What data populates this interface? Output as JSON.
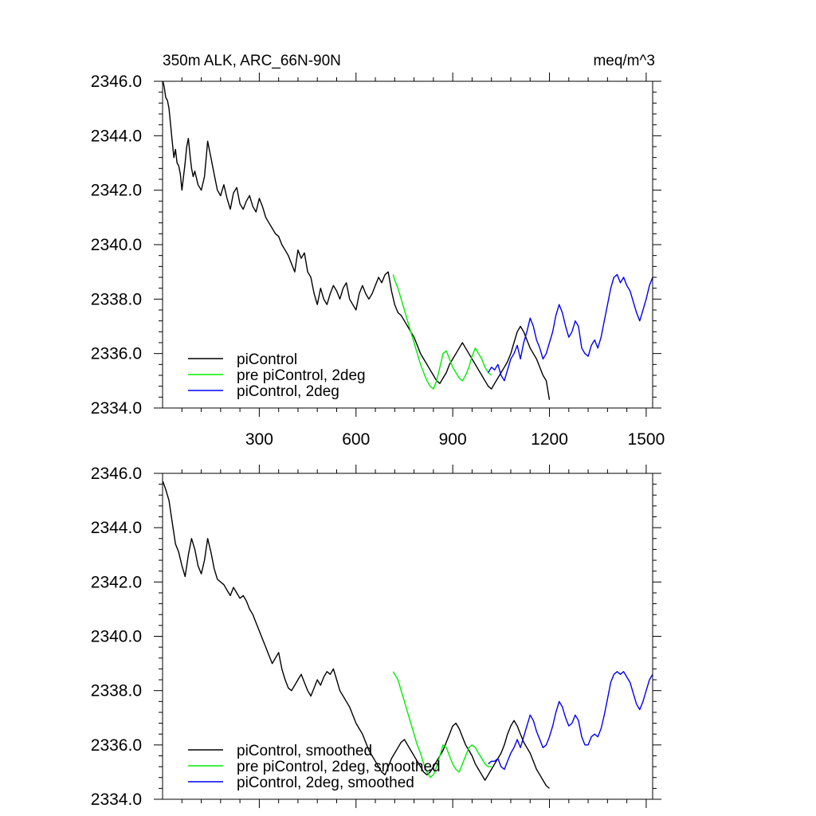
{
  "chart_data": [
    {
      "type": "line",
      "title_left": "350m ALK, ARC_66N-90N",
      "title_right": "meq/m^3",
      "xlim": [
        0,
        1520
      ],
      "ylim": [
        2334.0,
        2346.0
      ],
      "x_ticks": [
        300,
        600,
        900,
        1200,
        1500
      ],
      "x_tick_labels": [
        "300",
        "600",
        "900",
        "1200",
        "1500"
      ],
      "y_ticks": [
        2334.0,
        2336.0,
        2338.0,
        2340.0,
        2342.0,
        2344.0,
        2346.0
      ],
      "y_tick_labels": [
        "2334.0",
        "2336.0",
        "2338.0",
        "2340.0",
        "2342.0",
        "2344.0",
        "2346.0"
      ],
      "legend_position": "bottom-left",
      "series": [
        {
          "name": "piControl",
          "color": "#000000",
          "x": [
            1,
            5,
            10,
            15,
            20,
            25,
            30,
            35,
            40,
            45,
            50,
            55,
            60,
            65,
            70,
            75,
            80,
            85,
            90,
            95,
            100,
            110,
            120,
            130,
            140,
            150,
            160,
            170,
            180,
            190,
            200,
            210,
            220,
            230,
            240,
            250,
            260,
            270,
            280,
            290,
            300,
            310,
            320,
            330,
            340,
            350,
            360,
            370,
            380,
            390,
            400,
            410,
            420,
            430,
            440,
            450,
            460,
            470,
            480,
            490,
            500,
            510,
            520,
            530,
            540,
            550,
            560,
            570,
            580,
            590,
            600,
            610,
            620,
            630,
            640,
            650,
            660,
            670,
            680,
            690,
            700,
            710,
            720,
            730,
            740,
            750,
            760,
            770,
            780,
            790,
            800,
            810,
            820,
            830,
            840,
            850,
            860,
            870,
            880,
            890,
            900,
            910,
            920,
            930,
            940,
            950,
            960,
            970,
            980,
            990,
            1000,
            1010,
            1020,
            1030,
            1040,
            1050,
            1060,
            1070,
            1080,
            1090,
            1100,
            1110,
            1120,
            1130,
            1140,
            1150,
            1160,
            1170,
            1180,
            1190,
            1200
          ],
          "y": [
            2346.0,
            2345.8,
            2345.4,
            2345.3,
            2345.0,
            2344.4,
            2343.8,
            2343.2,
            2343.5,
            2343.0,
            2342.9,
            2342.6,
            2342.0,
            2342.5,
            2343.0,
            2343.6,
            2343.9,
            2343.3,
            2342.8,
            2342.5,
            2342.7,
            2342.2,
            2342.0,
            2342.5,
            2343.8,
            2343.2,
            2342.6,
            2342.0,
            2341.8,
            2342.2,
            2341.7,
            2341.3,
            2341.9,
            2342.1,
            2341.5,
            2341.3,
            2341.6,
            2341.8,
            2341.4,
            2341.2,
            2341.7,
            2341.4,
            2341.0,
            2340.8,
            2340.6,
            2340.4,
            2340.3,
            2340.0,
            2339.8,
            2339.6,
            2339.3,
            2339.0,
            2339.8,
            2339.5,
            2339.7,
            2339.0,
            2338.8,
            2338.2,
            2337.8,
            2338.4,
            2338.0,
            2337.8,
            2338.2,
            2338.5,
            2338.3,
            2338.0,
            2338.4,
            2338.6,
            2338.0,
            2337.8,
            2337.6,
            2338.2,
            2338.5,
            2338.2,
            2338.0,
            2338.2,
            2338.5,
            2338.8,
            2338.6,
            2338.9,
            2339.0,
            2338.3,
            2337.8,
            2337.5,
            2337.4,
            2337.2,
            2337.0,
            2336.8,
            2336.6,
            2336.3,
            2336.0,
            2335.8,
            2335.6,
            2335.4,
            2335.2,
            2335.0,
            2334.9,
            2335.1,
            2335.3,
            2335.6,
            2335.8,
            2336.0,
            2336.2,
            2336.4,
            2336.2,
            2336.0,
            2335.8,
            2335.6,
            2335.4,
            2335.2,
            2335.0,
            2334.8,
            2334.7,
            2334.9,
            2335.1,
            2335.3,
            2335.5,
            2335.7,
            2336.0,
            2336.4,
            2336.8,
            2337.0,
            2336.8,
            2336.5,
            2336.2,
            2336.0,
            2335.8,
            2335.5,
            2335.2,
            2335.0,
            2334.3
          ]
        },
        {
          "name": "pre piControl, 2deg",
          "color": "#00ee00",
          "x": [
            715,
            720,
            730,
            740,
            750,
            760,
            770,
            780,
            790,
            800,
            810,
            820,
            830,
            840,
            850,
            860,
            870,
            880,
            890,
            900,
            910,
            920,
            930,
            940,
            950,
            960,
            970,
            980,
            990,
            1000,
            1010,
            1020
          ],
          "y": [
            2338.9,
            2338.7,
            2338.4,
            2338.0,
            2337.6,
            2337.2,
            2336.8,
            2336.4,
            2336.0,
            2335.6,
            2335.3,
            2335.0,
            2334.8,
            2334.7,
            2335.0,
            2335.5,
            2336.0,
            2336.1,
            2335.8,
            2335.5,
            2335.3,
            2335.1,
            2335.0,
            2335.2,
            2335.5,
            2335.9,
            2336.2,
            2336.0,
            2335.8,
            2335.5,
            2335.3,
            2335.2
          ]
        },
        {
          "name": "piControl, 2deg",
          "color": "#0000ee",
          "x": [
            1010,
            1020,
            1030,
            1040,
            1050,
            1060,
            1070,
            1080,
            1090,
            1100,
            1110,
            1120,
            1130,
            1140,
            1150,
            1160,
            1170,
            1180,
            1190,
            1200,
            1210,
            1220,
            1230,
            1240,
            1250,
            1260,
            1270,
            1280,
            1290,
            1300,
            1310,
            1320,
            1330,
            1340,
            1350,
            1360,
            1370,
            1380,
            1390,
            1400,
            1410,
            1420,
            1430,
            1440,
            1450,
            1460,
            1470,
            1480,
            1490,
            1500,
            1510,
            1520
          ],
          "y": [
            2335.3,
            2335.5,
            2335.4,
            2335.6,
            2335.2,
            2335.0,
            2335.4,
            2335.8,
            2336.0,
            2336.3,
            2335.8,
            2336.4,
            2336.8,
            2337.3,
            2337.0,
            2336.5,
            2336.2,
            2335.8,
            2336.0,
            2336.4,
            2336.8,
            2337.4,
            2337.8,
            2337.5,
            2337.0,
            2336.6,
            2336.8,
            2337.2,
            2337.0,
            2336.2,
            2336.0,
            2335.9,
            2336.3,
            2336.5,
            2336.2,
            2336.6,
            2337.2,
            2337.8,
            2338.4,
            2338.8,
            2338.9,
            2338.6,
            2338.8,
            2338.5,
            2338.3,
            2337.9,
            2337.5,
            2337.2,
            2337.6,
            2338.0,
            2338.5,
            2338.8
          ]
        }
      ]
    },
    {
      "type": "line",
      "xlim": [
        0,
        1520
      ],
      "ylim": [
        2334.0,
        2346.0
      ],
      "x_ticks": [
        300,
        600,
        900,
        1200,
        1500
      ],
      "y_ticks": [
        2334.0,
        2336.0,
        2338.0,
        2340.0,
        2342.0,
        2344.0,
        2346.0
      ],
      "y_tick_labels": [
        "2334.0",
        "2336.0",
        "2338.0",
        "2340.0",
        "2342.0",
        "2344.0",
        "2346.0"
      ],
      "legend_position": "bottom-left",
      "series": [
        {
          "name": "piControl, smoothed",
          "color": "#000000",
          "x": [
            1,
            10,
            20,
            30,
            40,
            50,
            60,
            70,
            80,
            90,
            100,
            110,
            120,
            130,
            140,
            150,
            160,
            170,
            180,
            190,
            200,
            210,
            220,
            230,
            240,
            250,
            260,
            270,
            280,
            290,
            300,
            310,
            320,
            330,
            340,
            350,
            360,
            370,
            380,
            390,
            400,
            410,
            420,
            430,
            440,
            450,
            460,
            470,
            480,
            490,
            500,
            510,
            520,
            530,
            540,
            550,
            560,
            570,
            580,
            590,
            600,
            610,
            620,
            630,
            640,
            650,
            660,
            670,
            680,
            690,
            700,
            710,
            720,
            730,
            740,
            750,
            760,
            770,
            780,
            790,
            800,
            810,
            820,
            830,
            840,
            850,
            860,
            870,
            880,
            890,
            900,
            910,
            920,
            930,
            940,
            950,
            960,
            970,
            980,
            990,
            1000,
            1010,
            1020,
            1030,
            1040,
            1050,
            1060,
            1070,
            1080,
            1090,
            1100,
            1110,
            1120,
            1130,
            1140,
            1150,
            1160,
            1170,
            1180,
            1190,
            1200
          ],
          "y": [
            2345.7,
            2345.4,
            2345.0,
            2344.2,
            2343.4,
            2343.1,
            2342.6,
            2342.2,
            2343.0,
            2343.6,
            2343.2,
            2342.6,
            2342.3,
            2342.8,
            2343.6,
            2343.1,
            2342.5,
            2342.1,
            2342.0,
            2341.9,
            2341.7,
            2341.5,
            2341.8,
            2341.6,
            2341.4,
            2341.5,
            2341.3,
            2341.0,
            2340.8,
            2340.5,
            2340.2,
            2339.9,
            2339.6,
            2339.3,
            2339.0,
            2339.2,
            2339.4,
            2338.8,
            2338.4,
            2338.1,
            2338.0,
            2338.2,
            2338.4,
            2338.6,
            2338.3,
            2338.0,
            2337.8,
            2338.1,
            2338.4,
            2338.2,
            2338.5,
            2338.7,
            2338.6,
            2338.8,
            2338.4,
            2338.0,
            2337.8,
            2337.6,
            2337.4,
            2337.1,
            2336.8,
            2336.6,
            2336.4,
            2336.1,
            2335.8,
            2335.6,
            2335.4,
            2335.2,
            2335.0,
            2334.9,
            2335.2,
            2335.5,
            2335.7,
            2335.9,
            2336.1,
            2336.2,
            2336.0,
            2335.8,
            2335.6,
            2335.4,
            2335.2,
            2335.0,
            2334.9,
            2335.0,
            2335.2,
            2335.4,
            2335.6,
            2335.8,
            2336.1,
            2336.4,
            2336.7,
            2336.8,
            2336.6,
            2336.3,
            2336.0,
            2335.8,
            2335.6,
            2335.3,
            2335.1,
            2334.9,
            2334.7,
            2334.9,
            2335.1,
            2335.3,
            2335.5,
            2335.7,
            2336.0,
            2336.4,
            2336.7,
            2336.9,
            2336.7,
            2336.4,
            2336.1,
            2335.9,
            2335.7,
            2335.4,
            2335.1,
            2334.9,
            2334.7,
            2334.5,
            2334.4
          ]
        },
        {
          "name": "pre piControl, 2deg, smoothed",
          "color": "#00ee00",
          "x": [
            715,
            730,
            740,
            750,
            760,
            770,
            780,
            790,
            800,
            810,
            820,
            830,
            840,
            850,
            860,
            870,
            880,
            890,
            900,
            910,
            920,
            930,
            940,
            950,
            960,
            970,
            980,
            990,
            1000,
            1010,
            1020
          ],
          "y": [
            2338.7,
            2338.4,
            2338.0,
            2337.6,
            2337.2,
            2336.8,
            2336.4,
            2336.0,
            2335.7,
            2335.3,
            2335.0,
            2334.8,
            2334.9,
            2335.2,
            2335.6,
            2336.0,
            2335.9,
            2335.6,
            2335.3,
            2335.1,
            2335.0,
            2335.3,
            2335.6,
            2335.9,
            2336.0,
            2335.9,
            2335.7,
            2335.5,
            2335.3,
            2335.2,
            2335.2
          ]
        },
        {
          "name": "piControl, 2deg, smoothed",
          "color": "#0000ee",
          "x": [
            1010,
            1020,
            1030,
            1040,
            1050,
            1060,
            1070,
            1080,
            1090,
            1100,
            1110,
            1120,
            1130,
            1140,
            1150,
            1160,
            1170,
            1180,
            1190,
            1200,
            1210,
            1220,
            1230,
            1240,
            1250,
            1260,
            1270,
            1280,
            1290,
            1300,
            1310,
            1320,
            1330,
            1340,
            1350,
            1360,
            1370,
            1380,
            1390,
            1400,
            1410,
            1420,
            1430,
            1440,
            1450,
            1460,
            1470,
            1480,
            1490,
            1500,
            1510,
            1520
          ],
          "y": [
            2335.3,
            2335.4,
            2335.4,
            2335.5,
            2335.2,
            2335.1,
            2335.4,
            2335.7,
            2335.9,
            2336.2,
            2335.9,
            2336.3,
            2336.7,
            2337.1,
            2336.9,
            2336.5,
            2336.2,
            2335.9,
            2336.0,
            2336.3,
            2336.7,
            2337.2,
            2337.6,
            2337.4,
            2337.0,
            2336.7,
            2336.8,
            2337.1,
            2336.9,
            2336.3,
            2336.0,
            2336.0,
            2336.3,
            2336.4,
            2336.3,
            2336.6,
            2337.1,
            2337.7,
            2338.3,
            2338.6,
            2338.7,
            2338.6,
            2338.7,
            2338.5,
            2338.3,
            2337.9,
            2337.5,
            2337.3,
            2337.6,
            2338.0,
            2338.4,
            2338.6
          ]
        }
      ]
    }
  ]
}
